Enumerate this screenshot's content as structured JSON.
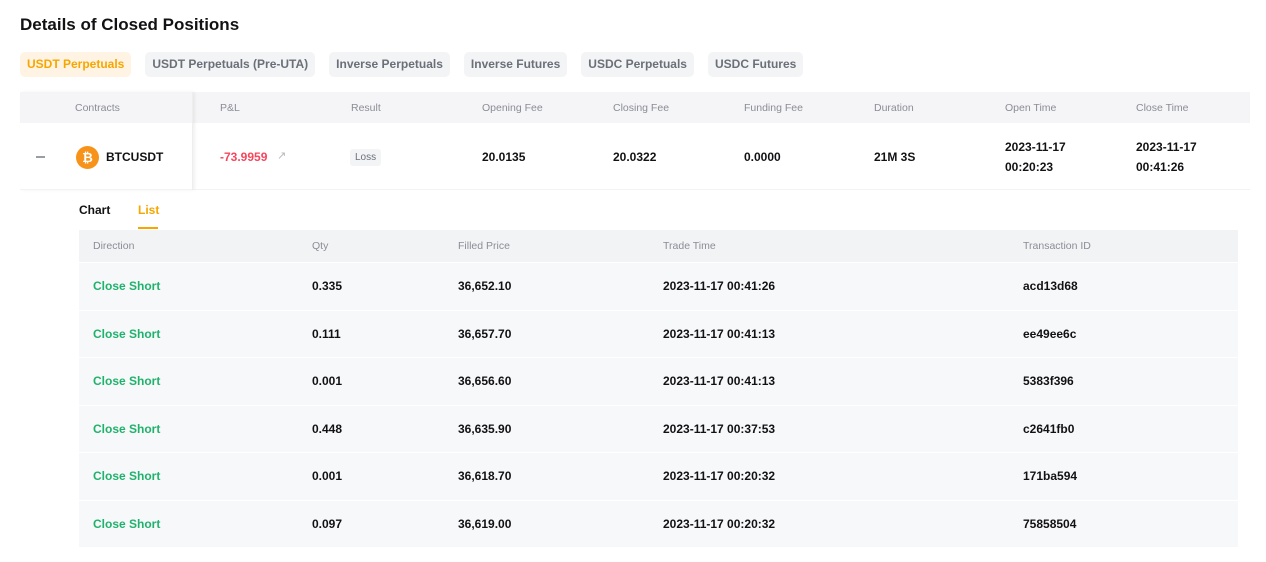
{
  "title": "Details of Closed Positions",
  "tabs": [
    "USDT Perpetuals",
    "USDT Perpetuals (Pre-UTA)",
    "Inverse Perpetuals",
    "Inverse Futures",
    "USDC Perpetuals",
    "USDC Futures"
  ],
  "active_tab": "USDT Perpetuals",
  "colors": {
    "accent": "#f7a600",
    "loss": "#f6465d",
    "profit": "#20b26c"
  },
  "positions": {
    "headers": [
      "Contracts",
      "P&L",
      "Result",
      "Opening Fee",
      "Closing Fee",
      "Funding Fee",
      "Duration",
      "Open Time",
      "Close Time"
    ],
    "row": {
      "contract": "BTCUSDT",
      "coin_icon": "bitcoin-icon",
      "pnl": "-73.9959",
      "result": "Loss",
      "opening_fee": "20.0135",
      "closing_fee": "20.0322",
      "funding_fee": "0.0000",
      "duration": "21M 3S",
      "open_date": "2023-11-17",
      "open_time": "00:20:23",
      "close_date": "2023-11-17",
      "close_time": "00:41:26"
    }
  },
  "detail": {
    "tabs": [
      "Chart",
      "List"
    ],
    "active_tab": "List",
    "headers": [
      "Direction",
      "Qty",
      "Filled Price",
      "Trade Time",
      "Transaction ID"
    ],
    "rows": [
      [
        "Close Short",
        "0.335",
        "36,652.10",
        "2023-11-17 00:41:26",
        "acd13d68"
      ],
      [
        "Close Short",
        "0.111",
        "36,657.70",
        "2023-11-17 00:41:13",
        "ee49ee6c"
      ],
      [
        "Close Short",
        "0.001",
        "36,656.60",
        "2023-11-17 00:41:13",
        "5383f396"
      ],
      [
        "Close Short",
        "0.448",
        "36,635.90",
        "2023-11-17 00:37:53",
        "c2641fb0"
      ],
      [
        "Close Short",
        "0.001",
        "36,618.70",
        "2023-11-17 00:20:32",
        "171ba594"
      ],
      [
        "Close Short",
        "0.097",
        "36,619.00",
        "2023-11-17 00:20:32",
        "75858504"
      ]
    ]
  }
}
